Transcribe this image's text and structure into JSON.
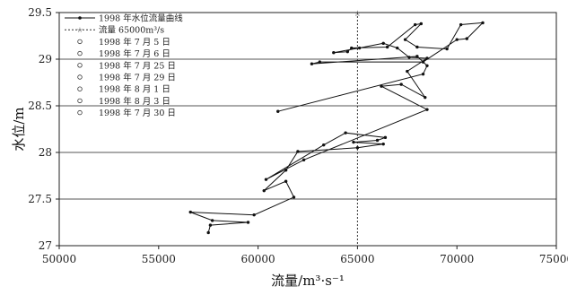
{
  "chart_data": {
    "type": "line",
    "xlabel": "流量/m³·s⁻¹",
    "ylabel": "水位/m",
    "xlim": [
      50000,
      75000
    ],
    "ylim": [
      27,
      29.5
    ],
    "xticks": [
      "50000",
      "55000",
      "60000",
      "65000",
      "70000",
      "75000"
    ],
    "yticks": [
      "27",
      "27.5",
      "28",
      "28.5",
      "29",
      "29.5"
    ],
    "gridlines_y": [
      27.5,
      28,
      28.5,
      29
    ],
    "reference_line": {
      "x": 65000,
      "style": "dotted"
    },
    "legend": {
      "placement": "top-left",
      "entries": [
        {
          "label": "1998 年水位流量曲线",
          "marker": "line-dot"
        },
        {
          "label": "流量 65000m³/s",
          "marker": "dotted-star"
        },
        {
          "label": "1998 年 7 月 5 日",
          "marker": "circle"
        },
        {
          "label": "1998 年 7 月 6 日",
          "marker": "circle"
        },
        {
          "label": "1998 年 7 月 25 日",
          "marker": "circle"
        },
        {
          "label": "1998 年 7 月 29 日",
          "marker": "circle"
        },
        {
          "label": "1998 年 8 月 1 日",
          "marker": "circle"
        },
        {
          "label": "1998 年 8 月 3 日",
          "marker": "circle"
        },
        {
          "label": "1998 年 7 月 30 日",
          "marker": "circle"
        }
      ]
    },
    "series": [
      {
        "name": "1998 年水位流量曲线",
        "color": "#111111",
        "points": [
          [
            57500,
            27.14
          ],
          [
            57600,
            27.22
          ],
          [
            59500,
            27.25
          ],
          [
            57700,
            27.27
          ],
          [
            56600,
            27.36
          ],
          [
            59800,
            27.33
          ],
          [
            61800,
            27.52
          ],
          [
            61400,
            27.69
          ],
          [
            60300,
            27.59
          ],
          [
            61400,
            27.81
          ],
          [
            62000,
            28.01
          ],
          [
            65000,
            28.05
          ],
          [
            66300,
            28.09
          ],
          [
            64800,
            28.11
          ],
          [
            66000,
            28.13
          ],
          [
            66400,
            28.16
          ],
          [
            64400,
            28.21
          ],
          [
            63300,
            28.08
          ],
          [
            60400,
            27.71
          ],
          [
            62300,
            27.92
          ],
          [
            68500,
            28.46
          ],
          [
            66200,
            28.71
          ],
          [
            67200,
            28.73
          ],
          [
            68400,
            28.59
          ],
          [
            67500,
            28.87
          ],
          [
            68500,
            29.01
          ],
          [
            67600,
            29.02
          ],
          [
            67000,
            29.12
          ],
          [
            66300,
            29.17
          ],
          [
            65100,
            29.12
          ],
          [
            63800,
            29.07
          ],
          [
            64500,
            29.08
          ],
          [
            64700,
            29.12
          ],
          [
            66500,
            29.13
          ],
          [
            67900,
            29.37
          ],
          [
            68200,
            29.38
          ],
          [
            67400,
            29.21
          ],
          [
            68000,
            29.13
          ],
          [
            69500,
            29.11
          ],
          [
            70200,
            29.37
          ],
          [
            71300,
            29.39
          ],
          [
            70500,
            29.22
          ],
          [
            70000,
            29.21
          ],
          [
            68300,
            28.97
          ],
          [
            63100,
            28.97
          ],
          [
            62700,
            28.95
          ],
          [
            68000,
            29.03
          ],
          [
            68500,
            28.93
          ],
          [
            68300,
            28.84
          ],
          [
            61000,
            28.44
          ]
        ]
      }
    ]
  }
}
